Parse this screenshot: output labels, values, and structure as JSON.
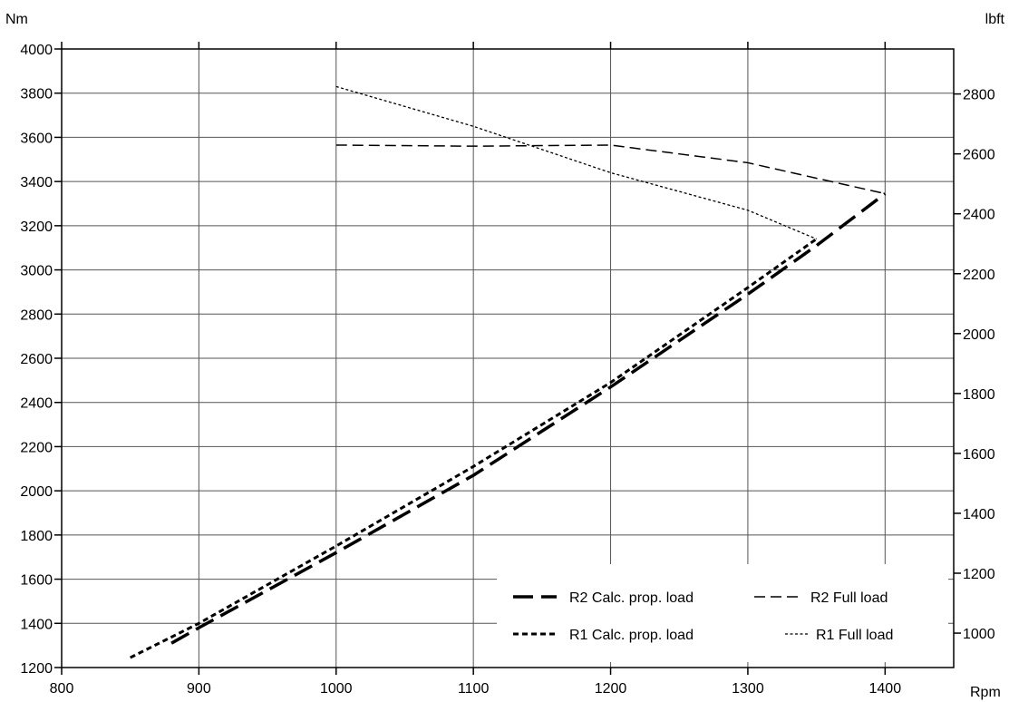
{
  "chart_data": {
    "type": "line",
    "title": "",
    "xlabel": "Rpm",
    "ylabel": "Nm",
    "ylabel_right": "lbft",
    "xlim": [
      800,
      1450
    ],
    "ylim": [
      1200,
      4000
    ],
    "y2lim": [
      885.1,
      2950.2
    ],
    "x_ticks": [
      800,
      900,
      1000,
      1100,
      1200,
      1300,
      1400
    ],
    "y_ticks": [
      1200,
      1400,
      1600,
      1800,
      2000,
      2200,
      2400,
      2600,
      2800,
      3000,
      3200,
      3400,
      3600,
      3800,
      4000
    ],
    "y2_ticks": [
      1000,
      1200,
      1400,
      1600,
      1800,
      2000,
      2200,
      2400,
      2600,
      2800
    ],
    "grid": true,
    "legend_position": "bottom-right",
    "series": [
      {
        "name": "R2 Calc. prop. load",
        "style": "long-dash-thick",
        "x": [
          880,
          900,
          1000,
          1100,
          1200,
          1300,
          1350,
          1400
        ],
        "y": [
          1310,
          1380,
          1720,
          2070,
          2470,
          2890,
          3110,
          3345
        ]
      },
      {
        "name": "R2 Full load",
        "style": "dash-thin",
        "x": [
          1000,
          1100,
          1200,
          1300,
          1400
        ],
        "y": [
          3565,
          3560,
          3565,
          3485,
          3345
        ]
      },
      {
        "name": "R1 Calc. prop. load",
        "style": "short-dash-thick",
        "x": [
          850,
          900,
          1000,
          1100,
          1200,
          1300,
          1350
        ],
        "y": [
          1245,
          1400,
          1750,
          2110,
          2490,
          2920,
          3140
        ]
      },
      {
        "name": "R1 Full load",
        "style": "dot-thin",
        "x": [
          1000,
          1100,
          1200,
          1300,
          1350
        ],
        "y": [
          3830,
          3650,
          3440,
          3270,
          3140
        ]
      }
    ]
  }
}
